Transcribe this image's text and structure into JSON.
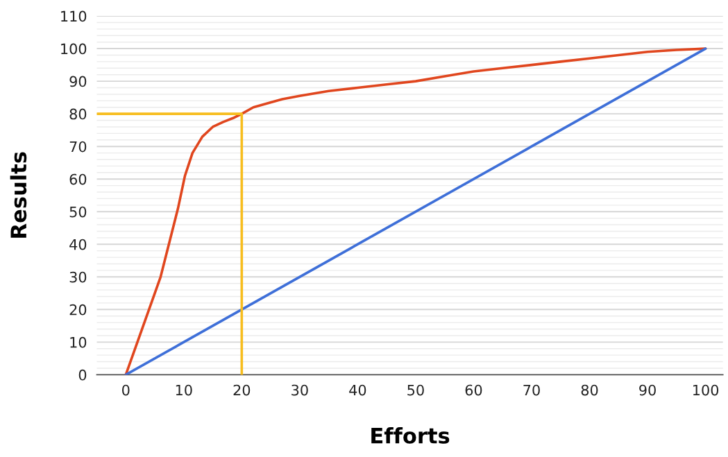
{
  "chart_data": {
    "type": "line",
    "xlabel": "Efforts",
    "ylabel": "Results",
    "series": [
      {
        "color": "#e0461e",
        "x": [
          0,
          3,
          6,
          9,
          10.2,
          11.5,
          13.2,
          15,
          16.8,
          18.5,
          20,
          22,
          24,
          27,
          30,
          35,
          40,
          45,
          50,
          55,
          60,
          65,
          70,
          75,
          80,
          85,
          90,
          95,
          100
        ],
        "values": [
          0,
          15,
          30,
          51,
          61,
          68,
          73,
          76,
          77.5,
          78.7,
          80,
          82,
          83,
          84.5,
          85.5,
          87,
          88,
          89,
          90,
          91.5,
          93,
          94,
          95,
          96,
          97,
          98,
          99,
          99.6,
          100
        ]
      },
      {
        "color": "#3e6fd8",
        "x": [
          0,
          100
        ],
        "values": [
          0,
          100
        ]
      },
      {
        "color": "#f7bd1e",
        "x": [
          -5,
          20,
          20
        ],
        "values": [
          80,
          80,
          0
        ]
      }
    ],
    "xlim": [
      -5,
      103
    ],
    "ylim": [
      0,
      110
    ],
    "xticks": [
      0,
      10,
      20,
      30,
      40,
      50,
      60,
      70,
      80,
      90,
      100
    ],
    "yticks": [
      0,
      {
        "value": 2,
        "label": null
      },
      {
        "value": 4,
        "label": null
      },
      {
        "value": 6,
        "label": null
      },
      {
        "value": 8,
        "label": null
      },
      10,
      {
        "value": 12,
        "label": null
      },
      {
        "value": 14,
        "label": null
      },
      {
        "value": 16,
        "label": null
      },
      {
        "value": 18,
        "label": null
      },
      20,
      {
        "value": 22,
        "label": null
      },
      {
        "value": 24,
        "label": null
      },
      {
        "value": 26,
        "label": null
      },
      {
        "value": 28,
        "label": null
      },
      30,
      {
        "value": 32,
        "label": null
      },
      {
        "value": 34,
        "label": null
      },
      {
        "value": 36,
        "label": null
      },
      {
        "value": 38,
        "label": null
      },
      40,
      {
        "value": 42,
        "label": null
      },
      {
        "value": 44,
        "label": null
      },
      {
        "value": 46,
        "label": null
      },
      {
        "value": 48,
        "label": null
      },
      50,
      {
        "value": 52,
        "label": null
      },
      {
        "value": 54,
        "label": null
      },
      {
        "value": 56,
        "label": null
      },
      {
        "value": 58,
        "label": null
      },
      60,
      {
        "value": 62,
        "label": null
      },
      {
        "value": 64,
        "label": null
      },
      {
        "value": 66,
        "label": null
      },
      {
        "value": 68,
        "label": null
      },
      70,
      {
        "value": 72,
        "label": null
      },
      {
        "value": 74,
        "label": null
      },
      {
        "value": 76,
        "label": null
      },
      {
        "value": 78,
        "label": null
      },
      80,
      {
        "value": 82,
        "label": null
      },
      {
        "value": 84,
        "label": null
      },
      {
        "value": 86,
        "label": null
      },
      {
        "value": 88,
        "label": null
      },
      90,
      {
        "value": 92,
        "label": null
      },
      {
        "value": 94,
        "label": null
      },
      {
        "value": 96,
        "label": null
      },
      {
        "value": 98,
        "label": null
      },
      100,
      {
        "value": 102,
        "label": null
      },
      {
        "value": 104,
        "label": null
      },
      {
        "value": 106,
        "label": null
      },
      {
        "value": 108,
        "label": null
      },
      110
    ],
    "grid": "y",
    "marker": "none",
    "line_style": "solid"
  }
}
